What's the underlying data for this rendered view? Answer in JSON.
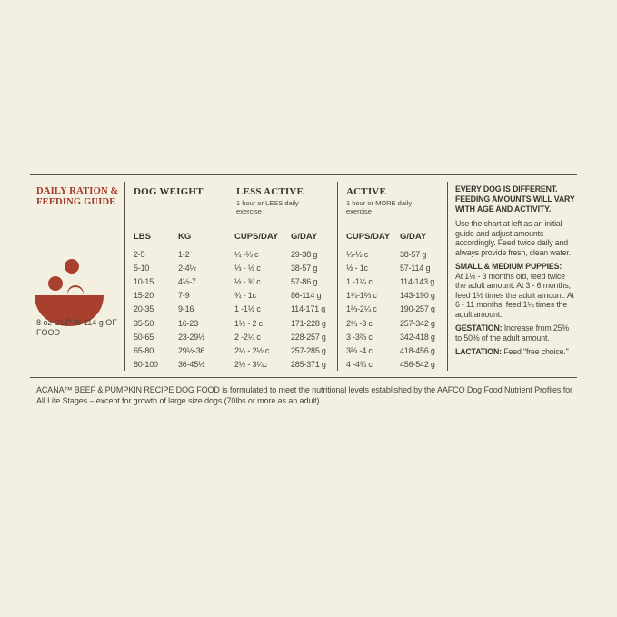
{
  "guide": {
    "title": "DAILY RATION & FEEDING GUIDE",
    "cup_note": "8 oz CUP IS 114 g OF FOOD"
  },
  "table": {
    "groups": [
      {
        "title": "DOG WEIGHT",
        "subtitle": null
      },
      {
        "title": "LESS ACTIVE",
        "subtitle": "1 hour or LESS daily exercise"
      },
      {
        "title": "ACTIVE",
        "subtitle": "1 hour or MORE daily exercise"
      }
    ],
    "columns": [
      "LBS",
      "KG",
      "CUPS/DAY",
      "G/DAY",
      "CUPS/DAY",
      "G/DAY"
    ],
    "rows": [
      [
        "2-5",
        "1-2",
        "¼ -⅓ c",
        "29-38 g",
        "⅓-½ c",
        "38-57 g"
      ],
      [
        "5-10",
        "2-4½",
        "⅓ - ½ c",
        "38-57 g",
        "½ - 1c",
        "57-114 g"
      ],
      [
        "10-15",
        "4½-7",
        "½ - ¾ c",
        "57-86 g",
        "1 -1¼ c",
        "114-143 g"
      ],
      [
        "15-20",
        "7-9",
        "¾ - 1c",
        "86-114 g",
        "1¼-1⅔ c",
        "143-190 g"
      ],
      [
        "20-35",
        "9-16",
        "1 -1½ c",
        "114-171 g",
        "1⅔-2¼ c",
        "190-257 g"
      ],
      [
        "35-50",
        "16-23",
        "1½ - 2 c",
        "171-228 g",
        "2¼ -3 c",
        "257-342 g"
      ],
      [
        "50-65",
        "23-29½",
        "2 -2¼ c",
        "228-257 g",
        "3 -3⅔ c",
        "342-418 g"
      ],
      [
        "65-80",
        "29½-36",
        "2¼ - 2½ c",
        "257-285 g",
        "3⅔ -4 c",
        "418-456 g"
      ],
      [
        "80-100",
        "36-45½",
        "2½ - 3¼c",
        "285-371 g",
        "4 -4¾ c",
        "456-542 g"
      ]
    ]
  },
  "notes": {
    "heading": "EVERY DOG IS DIFFERENT. FEEDING AMOUNTS WILL VARY WITH AGE AND ACTIVITY.",
    "intro": "Use the chart at left as an initial guide and adjust amounts accordingly. Feed twice daily and always provide fresh, clean water.",
    "puppies_label": "SMALL & MEDIUM PUPPIES:",
    "puppies_text": "At 1½ - 3 months old, feed twice the adult amount. At 3 - 6 months, feed 1½ times the adult amount. At 6 - 11 months, feed 1¼ times the adult amount.",
    "gestation_label": "GESTATION:",
    "gestation_text": "Increase from 25% to 50% of the adult amount.",
    "lactation_label": "LACTATION:",
    "lactation_text": "Feed \"free choice.\""
  },
  "footnote": "ACANA™ BEEF & PUMPKIN RECIPE DOG FOOD is formulated to meet the nutritional levels established by the AAFCO Dog Food Nutrient Profiles for All Life Stages – except for growth of large size dogs (70lbs or more as an adult)."
}
